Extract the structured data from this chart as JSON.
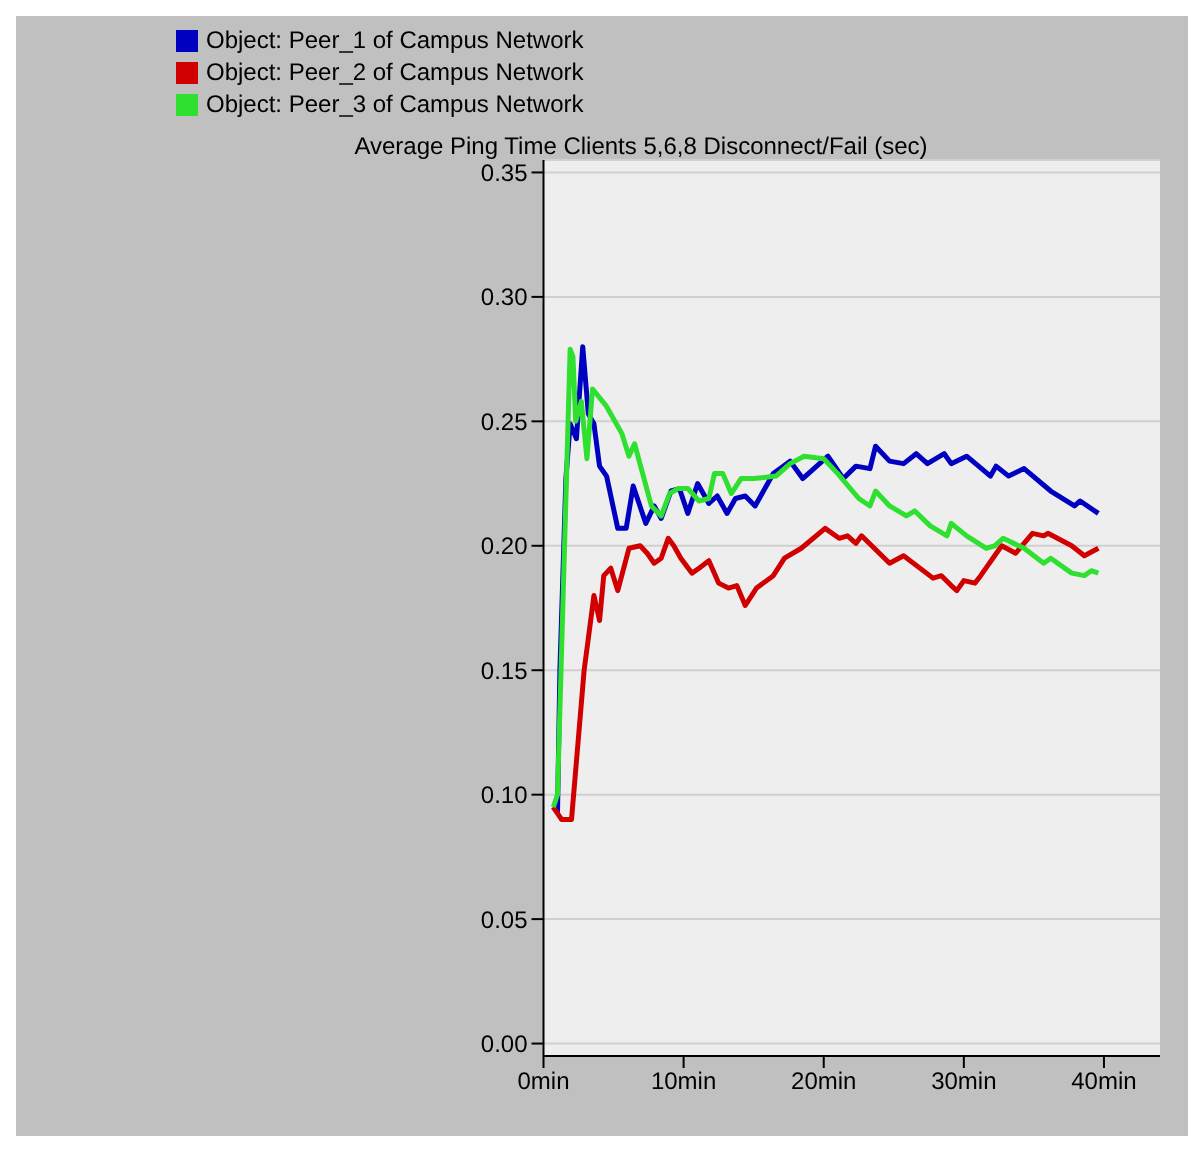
{
  "chart_data": {
    "type": "line",
    "title": "Average Ping Time Clients 5,6,8 Disconnect/Fail (sec)",
    "xlim": [
      0,
      44
    ],
    "xticks": [
      {
        "value": 0,
        "label": "0min"
      },
      {
        "value": 10,
        "label": "10min"
      },
      {
        "value": 20,
        "label": "20min"
      },
      {
        "value": 30,
        "label": "30min"
      },
      {
        "value": 40,
        "label": "40min"
      }
    ],
    "ylim": [
      -0.005,
      0.355
    ],
    "yticks": [
      {
        "value": 0,
        "label": "0.00"
      },
      {
        "value": 0.05,
        "label": "0.05"
      },
      {
        "value": 0.1,
        "label": "0.10"
      },
      {
        "value": 0.15,
        "label": "0.15"
      },
      {
        "value": 0.2,
        "label": "0.20"
      },
      {
        "value": 0.25,
        "label": "0.25"
      },
      {
        "value": 0.3,
        "label": "0.30"
      },
      {
        "value": 0.35,
        "label": "0.35"
      }
    ],
    "grid": "y",
    "legend": "top left",
    "marker": "none",
    "line_style": "solid",
    "series": [
      {
        "name": "Object: Peer_1 of Campus Network",
        "color": "#0000c0",
        "x": [
          0.7,
          1.0,
          1.17,
          1.6,
          1.9,
          2.35,
          2.8,
          3.2,
          3.6,
          4.0,
          4.5,
          5.3,
          5.9,
          6.4,
          7.3,
          7.9,
          8.4,
          9.1,
          9.7,
          10.3,
          11.0,
          11.8,
          12.4,
          13.1,
          13.7,
          14.4,
          15.1,
          16.4,
          17.6,
          18.5,
          19.3,
          20.3,
          21.4,
          22.3,
          23.3,
          23.7,
          24.7,
          25.7,
          26.6,
          27.4,
          28.6,
          29.1,
          30.2,
          31.9,
          32.3,
          33.2,
          34.3,
          36.2,
          37.9,
          38.3,
          39.6
        ],
        "values": [
          0.095,
          0.093,
          0.15,
          0.227,
          0.249,
          0.243,
          0.28,
          0.253,
          0.249,
          0.232,
          0.228,
          0.207,
          0.207,
          0.224,
          0.209,
          0.216,
          0.211,
          0.222,
          0.223,
          0.213,
          0.225,
          0.217,
          0.22,
          0.213,
          0.219,
          0.22,
          0.216,
          0.229,
          0.234,
          0.227,
          0.231,
          0.236,
          0.227,
          0.232,
          0.231,
          0.24,
          0.234,
          0.233,
          0.237,
          0.233,
          0.237,
          0.233,
          0.236,
          0.228,
          0.232,
          0.228,
          0.231,
          0.222,
          0.216,
          0.218,
          0.213
        ]
      },
      {
        "name": "Object: Peer_2 of Campus Network",
        "color": "#d00000",
        "x": [
          0.7,
          1.3,
          2.0,
          2.6,
          2.9,
          3.6,
          4.0,
          4.3,
          4.8,
          5.3,
          6.1,
          6.9,
          7.4,
          7.9,
          8.4,
          8.9,
          9.3,
          9.8,
          10.6,
          11.1,
          11.8,
          12.5,
          13.2,
          13.8,
          14.4,
          15.2,
          16.4,
          17.2,
          18.4,
          20.1,
          21.1,
          21.7,
          22.3,
          22.7,
          24.7,
          25.7,
          27.8,
          28.4,
          29.1,
          29.5,
          30.0,
          30.8,
          31.2,
          32.7,
          33.7,
          34.9,
          35.7,
          36.0,
          37.7,
          38.6,
          39.6
        ],
        "values": [
          0.095,
          0.09,
          0.09,
          0.13,
          0.15,
          0.18,
          0.17,
          0.188,
          0.191,
          0.182,
          0.199,
          0.2,
          0.197,
          0.193,
          0.195,
          0.203,
          0.2,
          0.195,
          0.189,
          0.191,
          0.194,
          0.185,
          0.183,
          0.184,
          0.176,
          0.183,
          0.188,
          0.195,
          0.199,
          0.207,
          0.203,
          0.204,
          0.201,
          0.204,
          0.193,
          0.196,
          0.187,
          0.188,
          0.184,
          0.182,
          0.186,
          0.185,
          0.188,
          0.2,
          0.197,
          0.205,
          0.204,
          0.205,
          0.2,
          0.196,
          0.199
        ]
      },
      {
        "name": "Object: Peer_3 of Campus Network",
        "color": "#30e030",
        "x": [
          0.7,
          1.0,
          1.9,
          2.1,
          2.3,
          2.7,
          3.1,
          3.5,
          4.5,
          5.6,
          6.1,
          6.5,
          7.7,
          8.4,
          9.0,
          9.6,
          10.3,
          11.1,
          11.8,
          12.2,
          12.8,
          13.4,
          14.1,
          15.0,
          16.6,
          17.6,
          18.6,
          20.0,
          21.0,
          22.5,
          23.3,
          23.7,
          24.7,
          25.9,
          26.5,
          27.6,
          28.8,
          29.1,
          30.2,
          31.6,
          32.2,
          32.8,
          34.3,
          35.7,
          36.2,
          37.7,
          38.6,
          39.1,
          39.6
        ],
        "values": [
          0.095,
          0.1,
          0.279,
          0.276,
          0.25,
          0.258,
          0.235,
          0.263,
          0.256,
          0.245,
          0.236,
          0.241,
          0.216,
          0.212,
          0.221,
          0.223,
          0.223,
          0.218,
          0.219,
          0.229,
          0.229,
          0.221,
          0.227,
          0.227,
          0.228,
          0.233,
          0.236,
          0.235,
          0.229,
          0.219,
          0.216,
          0.222,
          0.216,
          0.212,
          0.214,
          0.208,
          0.204,
          0.209,
          0.204,
          0.199,
          0.2,
          0.203,
          0.199,
          0.193,
          0.195,
          0.189,
          0.188,
          0.19,
          0.189
        ]
      }
    ]
  }
}
